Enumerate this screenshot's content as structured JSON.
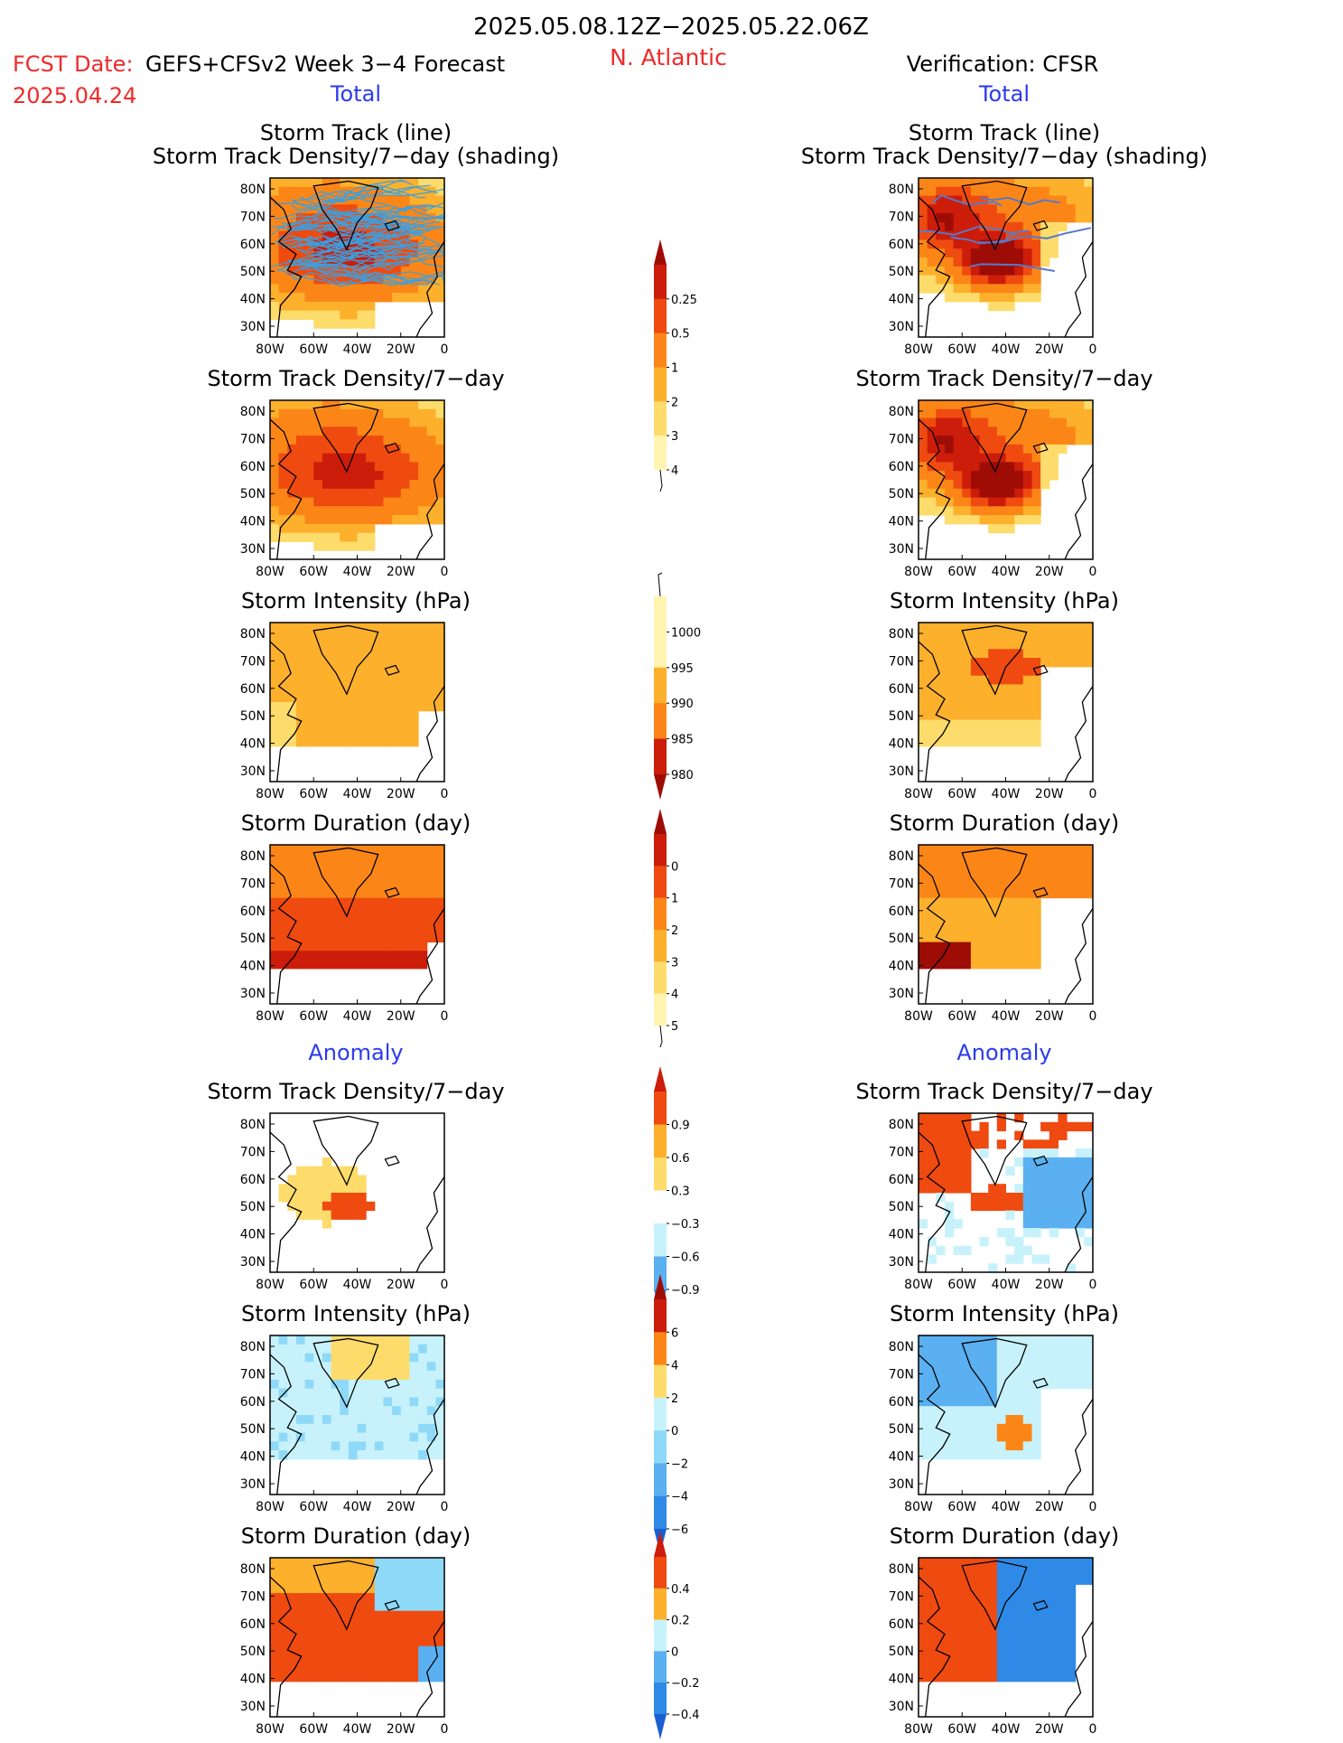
{
  "header": {
    "date_range": "2025.05.08.12Z−2025.05.22.06Z",
    "fcst_label": "FCST Date:",
    "fcst_date": "2025.04.24",
    "model_label": "GEFS+CFSv2 Week 3−4 Forecast",
    "region": "N. Atlantic",
    "verification": "Verification: CFSR"
  },
  "sections": {
    "total": "Total",
    "anomaly": "Anomaly"
  },
  "panel_titles": {
    "track_line": "Storm Track (line)",
    "track_shading": "Storm Track Density/7−day (shading)",
    "density": "Storm Track Density/7−day",
    "intensity": "Storm Intensity (hPa)",
    "duration": "Storm Duration (day)"
  },
  "axes": {
    "x_ticks": [
      "80W",
      "60W",
      "40W",
      "20W",
      "0"
    ],
    "y_ticks": [
      "80N",
      "70N",
      "60N",
      "50N",
      "40N",
      "30N"
    ]
  },
  "colors": {
    "pos": [
      "#fff5b0",
      "#fddc6c",
      "#fdb02c",
      "#fb8617",
      "#ef4a10",
      "#cc1c0a",
      "#9e0c06"
    ],
    "neg": [
      "#c8f2fb",
      "#8fd9f8",
      "#5ab0f0",
      "#2e8ae6",
      "#1a5fd0"
    ],
    "track_line": "#3aa0e0",
    "track_line_obs": "#5a78c8",
    "title_red": "#ef2a2a",
    "title_blue": "#2a3aee"
  },
  "chart_data": [
    {
      "type": "heatmap",
      "id": "colorbar_density",
      "levels": [
        0.25,
        0.5,
        1,
        2,
        3,
        4
      ],
      "labels": [
        "0.25",
        "0.5",
        "1",
        "2",
        "3",
        "4"
      ]
    },
    {
      "type": "heatmap",
      "id": "colorbar_intensity",
      "levels": [
        1000,
        995,
        990,
        985,
        980
      ],
      "labels": [
        "1000",
        "995",
        "990",
        "985",
        "980"
      ]
    },
    {
      "type": "heatmap",
      "id": "colorbar_duration",
      "levels": [
        0,
        1,
        2,
        3,
        4,
        5
      ],
      "labels": [
        "0",
        "1",
        "2",
        "3",
        "4",
        "5"
      ]
    },
    {
      "type": "heatmap",
      "id": "colorbar_density_anom",
      "levels": [
        0.9,
        0.6,
        0.3,
        -0.3,
        -0.6,
        -0.9
      ],
      "labels": [
        "0.9",
        "0.6",
        "0.3",
        "−0.3",
        "−0.6",
        "−0.9"
      ]
    },
    {
      "type": "heatmap",
      "id": "colorbar_intensity_anom",
      "levels": [
        6,
        4,
        2,
        0,
        -2,
        -4,
        -6
      ],
      "labels": [
        "6",
        "4",
        "2",
        "0",
        "−2",
        "−4",
        "−6"
      ]
    },
    {
      "type": "heatmap",
      "id": "colorbar_duration_anom",
      "levels": [
        0.4,
        0.2,
        0,
        -0.2,
        -0.4
      ],
      "labels": [
        "0.4",
        "0.2",
        "0",
        "−0.2",
        "−0.4"
      ]
    }
  ]
}
